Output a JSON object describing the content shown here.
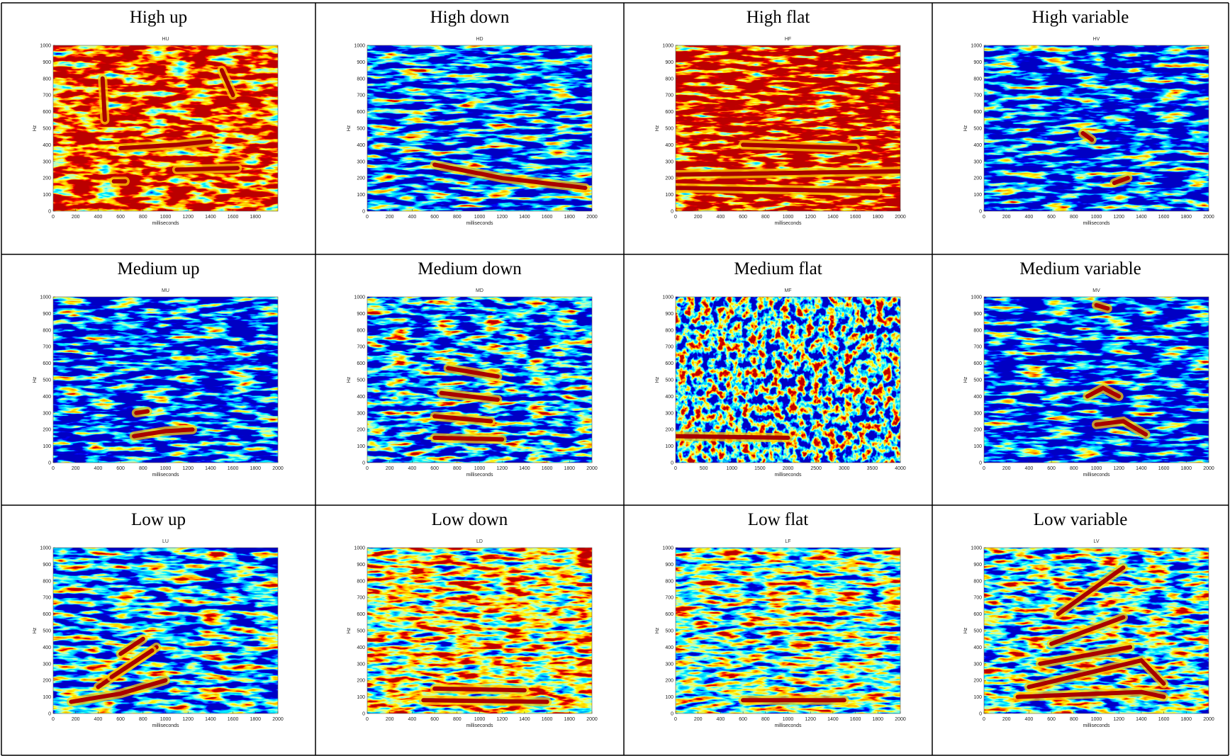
{
  "table": {
    "cells": [
      {
        "label": "High up",
        "plot": {
          "title": "HU",
          "ylabel": "Hz",
          "xlabel": "milliseconds",
          "xlim": [
            0,
            2000
          ],
          "ylim": [
            0,
            1000
          ],
          "xticks": [
            0,
            200,
            400,
            600,
            800,
            1000,
            1200,
            1400,
            1600,
            1800
          ],
          "yticks": [
            0,
            100,
            200,
            300,
            400,
            500,
            600,
            700,
            800,
            900,
            1000
          ]
        }
      },
      {
        "label": "High down",
        "plot": {
          "title": "HD",
          "ylabel": "Hz",
          "xlabel": "milliseconds",
          "xlim": [
            0,
            2000
          ],
          "ylim": [
            0,
            1000
          ],
          "xticks": [
            0,
            200,
            400,
            600,
            800,
            1000,
            1200,
            1400,
            1600,
            1800,
            2000
          ],
          "yticks": [
            0,
            100,
            200,
            300,
            400,
            500,
            600,
            700,
            800,
            900,
            1000
          ]
        }
      },
      {
        "label": "High flat",
        "plot": {
          "title": "HF",
          "ylabel": "Hz",
          "xlabel": "milliseconds",
          "xlim": [
            0,
            2000
          ],
          "ylim": [
            0,
            1000
          ],
          "xticks": [
            0,
            200,
            400,
            600,
            800,
            1000,
            1200,
            1400,
            1600,
            1800,
            2000
          ],
          "yticks": [
            0,
            100,
            200,
            300,
            400,
            500,
            600,
            700,
            800,
            900,
            1000
          ]
        }
      },
      {
        "label": "High variable",
        "plot": {
          "title": "HV",
          "ylabel": "Hz",
          "xlabel": "milliseconds",
          "xlim": [
            0,
            2000
          ],
          "ylim": [
            0,
            1000
          ],
          "xticks": [
            0,
            200,
            400,
            600,
            800,
            1000,
            1200,
            1400,
            1600,
            1800,
            2000
          ],
          "yticks": [
            0,
            100,
            200,
            300,
            400,
            500,
            600,
            700,
            800,
            900,
            1000
          ]
        }
      },
      {
        "label": "Medium up",
        "plot": {
          "title": "MU",
          "ylabel": "Hz",
          "xlabel": "milliseconds",
          "xlim": [
            0,
            2000
          ],
          "ylim": [
            0,
            1000
          ],
          "xticks": [
            0,
            200,
            400,
            600,
            800,
            1000,
            1200,
            1400,
            1600,
            1800,
            2000
          ],
          "yticks": [
            0,
            100,
            200,
            300,
            400,
            500,
            600,
            700,
            800,
            900,
            1000
          ]
        }
      },
      {
        "label": "Medium down",
        "plot": {
          "title": "MD",
          "ylabel": "Hz",
          "xlabel": "milliseconds",
          "xlim": [
            0,
            2000
          ],
          "ylim": [
            0,
            1000
          ],
          "xticks": [
            0,
            200,
            400,
            600,
            800,
            1000,
            1200,
            1400,
            1600,
            1800,
            2000
          ],
          "yticks": [
            0,
            100,
            200,
            300,
            400,
            500,
            600,
            700,
            800,
            900,
            1000
          ]
        }
      },
      {
        "label": "Medium flat",
        "plot": {
          "title": "MF",
          "ylabel": "Hz",
          "xlabel": "milliseconds",
          "xlim": [
            0,
            4000
          ],
          "ylim": [
            0,
            1000
          ],
          "xticks": [
            0,
            500,
            1000,
            1500,
            2000,
            2500,
            3000,
            3500,
            4000
          ],
          "yticks": [
            0,
            100,
            200,
            300,
            400,
            500,
            600,
            700,
            800,
            900,
            1000
          ]
        }
      },
      {
        "label": "Medium variable",
        "plot": {
          "title": "MV",
          "ylabel": "Hz",
          "xlabel": "milliseconds",
          "xlim": [
            0,
            2000
          ],
          "ylim": [
            0,
            1000
          ],
          "xticks": [
            0,
            200,
            400,
            600,
            800,
            1000,
            1200,
            1400,
            1600,
            1800,
            2000
          ],
          "yticks": [
            0,
            100,
            200,
            300,
            400,
            500,
            600,
            700,
            800,
            900,
            1000
          ]
        }
      },
      {
        "label": "Low up",
        "plot": {
          "title": "LU",
          "ylabel": "Hz",
          "xlabel": "milliseconds",
          "xlim": [
            0,
            2000
          ],
          "ylim": [
            0,
            1000
          ],
          "xticks": [
            0,
            200,
            400,
            600,
            800,
            1000,
            1200,
            1400,
            1600,
            1800,
            2000
          ],
          "yticks": [
            0,
            100,
            200,
            300,
            400,
            500,
            600,
            700,
            800,
            900,
            1000
          ]
        }
      },
      {
        "label": "Low down",
        "plot": {
          "title": "LD",
          "ylabel": "Hz",
          "xlabel": "milliseconds",
          "xlim": [
            0,
            2000
          ],
          "ylim": [
            0,
            1000
          ],
          "xticks": [
            0,
            200,
            400,
            600,
            800,
            1000,
            1200,
            1400,
            1600,
            1800,
            2000
          ],
          "yticks": [
            0,
            100,
            200,
            300,
            400,
            500,
            600,
            700,
            800,
            900,
            1000
          ]
        }
      },
      {
        "label": "Low flat",
        "plot": {
          "title": "LF",
          "ylabel": "Hz",
          "xlabel": "milliseconds",
          "xlim": [
            0,
            2000
          ],
          "ylim": [
            0,
            1000
          ],
          "xticks": [
            0,
            200,
            400,
            600,
            800,
            1000,
            1200,
            1400,
            1600,
            1800,
            2000
          ],
          "yticks": [
            0,
            100,
            200,
            300,
            400,
            500,
            600,
            700,
            800,
            900,
            1000
          ]
        }
      },
      {
        "label": "Low variable",
        "plot": {
          "title": "LV",
          "ylabel": "Hz",
          "xlabel": "milliseconds",
          "xlim": [
            0,
            2000
          ],
          "ylim": [
            0,
            1000
          ],
          "xticks": [
            0,
            200,
            400,
            600,
            800,
            1000,
            1200,
            1400,
            1600,
            1800,
            2000
          ],
          "yticks": [
            0,
            100,
            200,
            300,
            400,
            500,
            600,
            700,
            800,
            900,
            1000
          ]
        }
      }
    ]
  }
}
